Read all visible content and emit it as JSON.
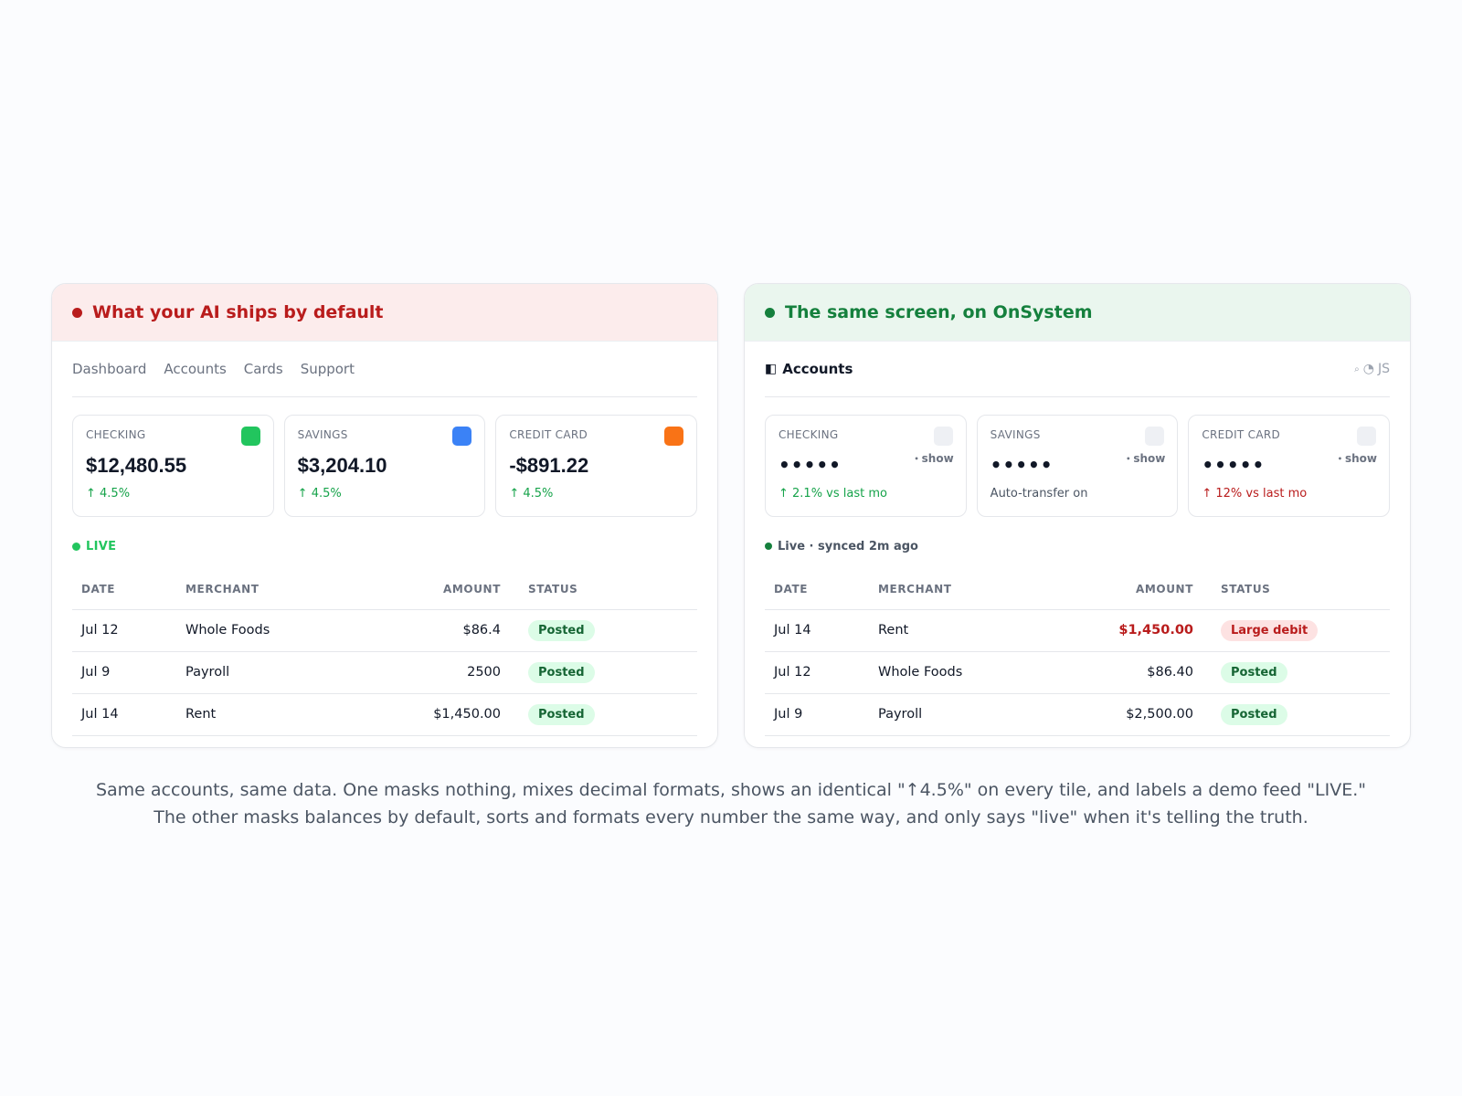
{
  "left_panel": {
    "title": "What your AI ships by default",
    "nav": [
      "Dashboard",
      "Accounts",
      "Cards",
      "Support"
    ],
    "tiles": [
      {
        "label": "CHECKING",
        "value": "$12,480.55",
        "change": "↑ 4.5%",
        "swatch": "#22c55e"
      },
      {
        "label": "SAVINGS",
        "value": "$3,204.10",
        "change": "↑ 4.5%",
        "swatch": "#3b82f6"
      },
      {
        "label": "CREDIT CARD",
        "value": "-$891.22",
        "change": "↑ 4.5%",
        "swatch": "#f97316"
      }
    ],
    "live_label": "LIVE",
    "table": {
      "headers": [
        "DATE",
        "MERCHANT",
        "AMOUNT",
        "STATUS"
      ],
      "rows": [
        {
          "date": "Jul 12",
          "merchant": "Whole Foods",
          "amount": "$86.4",
          "status": "Posted"
        },
        {
          "date": "Jul 9",
          "merchant": "Payroll",
          "amount": "2500",
          "status": "Posted"
        },
        {
          "date": "Jul 14",
          "merchant": "Rent",
          "amount": "$1,450.00",
          "status": "Posted"
        }
      ]
    }
  },
  "right_panel": {
    "title": "The same screen, on OnSystem",
    "header": {
      "icon": "◧",
      "title": "Accounts",
      "initials": "JS"
    },
    "tiles": [
      {
        "label": "CHECKING",
        "masked": "•••••",
        "show": "show",
        "change": "↑ 2.1% vs last mo"
      },
      {
        "label": "SAVINGS",
        "masked": "•••••",
        "show": "show",
        "change": "Auto-transfer on"
      },
      {
        "label": "CREDIT CARD",
        "masked": "•••••",
        "show": "show",
        "change": "↑ 12% vs last mo"
      }
    ],
    "live_label": "Live · synced 2m ago",
    "table": {
      "headers": [
        "DATE",
        "MERCHANT",
        "AMOUNT",
        "STATUS"
      ],
      "rows": [
        {
          "date": "Jul 14",
          "merchant": "Rent",
          "amount": "$1,450.00",
          "status": "Large debit"
        },
        {
          "date": "Jul 12",
          "merchant": "Whole Foods",
          "amount": "$86.40",
          "status": "Posted"
        },
        {
          "date": "Jul 9",
          "merchant": "Payroll",
          "amount": "$2,500.00",
          "status": "Posted"
        }
      ]
    }
  },
  "caption": {
    "line1": "Same accounts, same data. One masks nothing, mixes decimal formats, shows an identical \"↑4.5%\" on every tile, and labels a demo feed \"LIVE.\"",
    "line2": "The other masks balances by default, sorts and formats every number the same way, and only says \"live\" when it's telling the truth."
  },
  "colors": {
    "bad_accent": "#b91c1c",
    "good_accent": "#15803d",
    "bad_header_bg": "#fcecec",
    "good_header_bg": "#eaf6ee",
    "swatch_checking": "#22c55e",
    "swatch_savings": "#3b82f6",
    "swatch_credit": "#f97316",
    "masked_swatch": "#eef0f4"
  }
}
